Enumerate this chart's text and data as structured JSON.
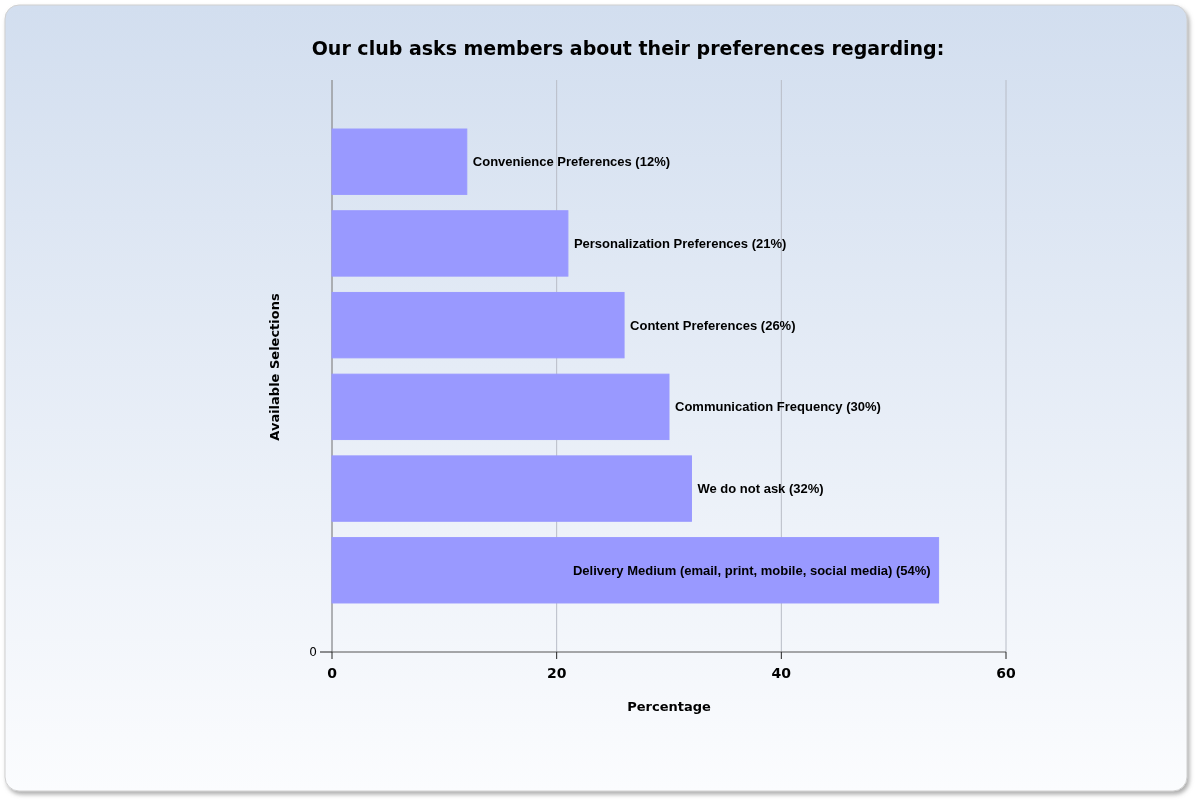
{
  "chart_data": {
    "type": "bar",
    "orientation": "horizontal",
    "title": "Our club asks members about their preferences regarding:",
    "xlabel": "Percentage",
    "ylabel": "Available Selections",
    "categories": [
      null,
      null,
      null,
      null,
      null,
      null
    ],
    "values": [
      12,
      21,
      26,
      30,
      32,
      54
    ],
    "value_labels": [
      "Convenience Preferences (12%)",
      "Personalization Preferences (21%)",
      "Content Preferences (26%)",
      "Communication Frequency (30%)",
      "We do not ask (32%)",
      "Delivery Medium (email, print, mobile, social media) (54%)"
    ],
    "color": "#9999ff",
    "xlim": [
      0,
      60
    ],
    "xticks": [
      0,
      20,
      40,
      60
    ],
    "grid": "x",
    "annotations": [
      "0"
    ]
  }
}
